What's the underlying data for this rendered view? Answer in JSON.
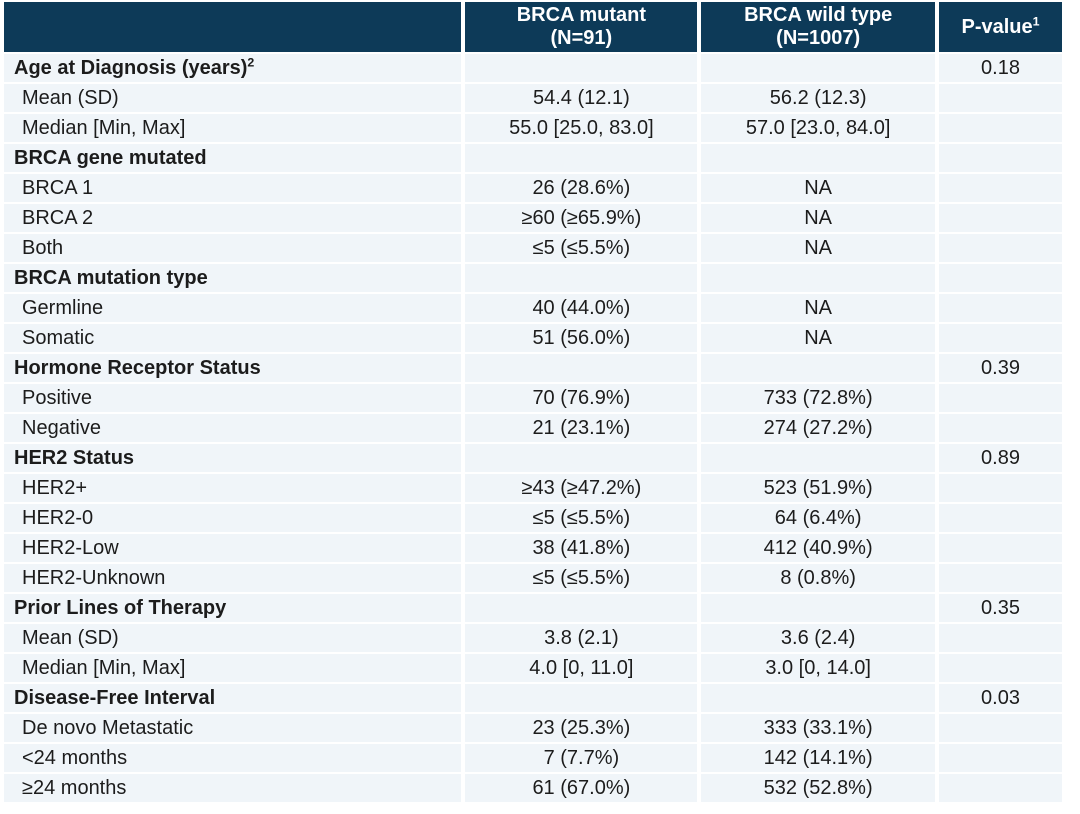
{
  "table": {
    "title_semantic": "Baseline characteristics by BRCA status",
    "colors": {
      "header_bg": "#0d3a58",
      "header_text": "#ffffff",
      "row_bg": "#f0f5f9",
      "separator": "#ffffff",
      "body_text": "#1c1c1c"
    },
    "header": {
      "col0": "",
      "col1_line1": "BRCA mutant",
      "col1_line2": "(N=91)",
      "col2_line1": "BRCA wild type",
      "col2_line2": "(N=1007)",
      "col3": "P-value",
      "col3_sup": "1"
    },
    "rows": [
      {
        "label": "Age at Diagnosis (years)",
        "sup": "2",
        "bold": true,
        "c1": "",
        "c2": "",
        "p": "0.18"
      },
      {
        "label": "Mean (SD)",
        "bold": false,
        "c1": "54.4 (12.1)",
        "c2": "56.2 (12.3)",
        "p": ""
      },
      {
        "label": "Median [Min, Max]",
        "bold": false,
        "c1": "55.0 [25.0, 83.0]",
        "c2": "57.0 [23.0, 84.0]",
        "p": ""
      },
      {
        "label": "BRCA gene mutated",
        "bold": true,
        "c1": "",
        "c2": "",
        "p": ""
      },
      {
        "label": "BRCA 1",
        "bold": false,
        "c1": "26 (28.6%)",
        "c2": "NA",
        "p": ""
      },
      {
        "label": "BRCA 2",
        "bold": false,
        "c1": "≥60 (≥65.9%)",
        "c2": "NA",
        "p": ""
      },
      {
        "label": "Both",
        "bold": false,
        "c1": "≤5 (≤5.5%)",
        "c2": "NA",
        "p": ""
      },
      {
        "label": "BRCA mutation type",
        "bold": true,
        "c1": "",
        "c2": "",
        "p": ""
      },
      {
        "label": "Germline",
        "bold": false,
        "c1": "40 (44.0%)",
        "c2": "NA",
        "p": ""
      },
      {
        "label": "Somatic",
        "bold": false,
        "c1": "51 (56.0%)",
        "c2": "NA",
        "p": ""
      },
      {
        "label": "Hormone Receptor Status",
        "bold": true,
        "c1": "",
        "c2": "",
        "p": "0.39"
      },
      {
        "label": "Positive",
        "bold": false,
        "c1": "70 (76.9%)",
        "c2": "733 (72.8%)",
        "p": ""
      },
      {
        "label": "Negative",
        "bold": false,
        "c1": "21 (23.1%)",
        "c2": "274 (27.2%)",
        "p": ""
      },
      {
        "label": "HER2 Status",
        "bold": true,
        "c1": "",
        "c2": "",
        "p": "0.89"
      },
      {
        "label": "HER2+",
        "bold": false,
        "c1": "≥43 (≥47.2%)",
        "c2": "523 (51.9%)",
        "p": ""
      },
      {
        "label": "HER2-0",
        "bold": false,
        "c1": "≤5 (≤5.5%)",
        "c2": "64 (6.4%)",
        "p": ""
      },
      {
        "label": "HER2-Low",
        "bold": false,
        "c1": "38 (41.8%)",
        "c2": "412 (40.9%)",
        "p": ""
      },
      {
        "label": "HER2-Unknown",
        "bold": false,
        "c1": "≤5 (≤5.5%)",
        "c2": "8 (0.8%)",
        "p": ""
      },
      {
        "label": "Prior Lines of Therapy",
        "bold": true,
        "c1": "",
        "c2": "",
        "p": "0.35"
      },
      {
        "label": "Mean (SD)",
        "bold": false,
        "c1": "3.8 (2.1)",
        "c2": "3.6 (2.4)",
        "p": ""
      },
      {
        "label": "Median [Min, Max]",
        "bold": false,
        "c1": "4.0 [0, 11.0]",
        "c2": "3.0 [0, 14.0]",
        "p": ""
      },
      {
        "label": "Disease-Free Interval",
        "bold": true,
        "c1": "",
        "c2": "",
        "p": "0.03"
      },
      {
        "label": "De novo Metastatic",
        "bold": false,
        "c1": "23 (25.3%)",
        "c2": "333 (33.1%)",
        "p": ""
      },
      {
        "label": "<24 months",
        "bold": false,
        "c1": "7 (7.7%)",
        "c2": "142 (14.1%)",
        "p": ""
      },
      {
        "label": "≥24 months",
        "bold": false,
        "c1": "61 (67.0%)",
        "c2": "532 (52.8%)",
        "p": ""
      }
    ]
  }
}
